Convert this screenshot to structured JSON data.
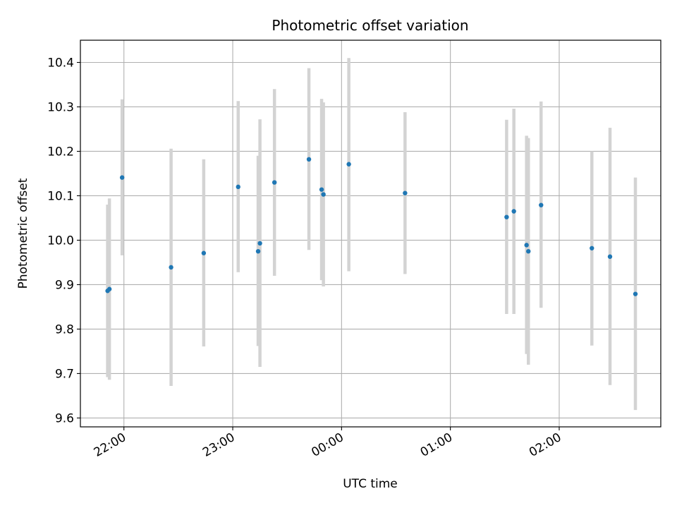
{
  "chart_data": {
    "type": "scatter",
    "title": "Photometric offset variation",
    "xlabel": "UTC time",
    "ylabel": "Photometric offset",
    "x_unit": "UTC time (hh:mm)",
    "xlim": [
      "21:36",
      "02:56"
    ],
    "ylim": [
      9.58,
      10.45
    ],
    "x_tick_labels": [
      "22:00",
      "23:00",
      "00:00",
      "01:00",
      "02:00"
    ],
    "y_tick_values": [
      9.6,
      9.7,
      9.8,
      9.9,
      10.0,
      10.1,
      10.2,
      10.3,
      10.4
    ],
    "y_tick_labels": [
      "9.6",
      "9.7",
      "9.8",
      "9.9",
      "10.0",
      "10.1",
      "10.2",
      "10.3",
      "10.4"
    ],
    "grid": true,
    "series": [
      {
        "marker_color": "#1f77b4",
        "errorbar_color": "#d3d3d3",
        "points": [
          {
            "x": "21:51",
            "y": 9.886,
            "ylow": 9.692,
            "yhigh": 10.08
          },
          {
            "x": "21:52",
            "y": 9.89,
            "ylow": 9.686,
            "yhigh": 10.094
          },
          {
            "x": "21:59",
            "y": 10.141,
            "ylow": 9.966,
            "yhigh": 10.317
          },
          {
            "x": "22:26",
            "y": 9.939,
            "ylow": 9.672,
            "yhigh": 10.206
          },
          {
            "x": "22:44",
            "y": 9.971,
            "ylow": 9.761,
            "yhigh": 10.182
          },
          {
            "x": "23:03",
            "y": 10.12,
            "ylow": 9.928,
            "yhigh": 10.313
          },
          {
            "x": "23:14",
            "y": 9.975,
            "ylow": 9.762,
            "yhigh": 10.19
          },
          {
            "x": "23:15",
            "y": 9.993,
            "ylow": 9.715,
            "yhigh": 10.272
          },
          {
            "x": "23:23",
            "y": 10.13,
            "ylow": 9.92,
            "yhigh": 10.34
          },
          {
            "x": "23:42",
            "y": 10.182,
            "ylow": 9.978,
            "yhigh": 10.387
          },
          {
            "x": "23:49",
            "y": 10.114,
            "ylow": 9.91,
            "yhigh": 10.318
          },
          {
            "x": "23:50",
            "y": 10.103,
            "ylow": 9.896,
            "yhigh": 10.31
          },
          {
            "x": "00:04",
            "y": 10.171,
            "ylow": 9.93,
            "yhigh": 10.41
          },
          {
            "x": "00:35",
            "y": 10.106,
            "ylow": 9.924,
            "yhigh": 10.288
          },
          {
            "x": "01:31",
            "y": 10.052,
            "ylow": 9.834,
            "yhigh": 10.271
          },
          {
            "x": "01:35",
            "y": 10.065,
            "ylow": 9.834,
            "yhigh": 10.296
          },
          {
            "x": "01:42",
            "y": 9.989,
            "ylow": 9.744,
            "yhigh": 10.235
          },
          {
            "x": "01:43",
            "y": 9.975,
            "ylow": 9.72,
            "yhigh": 10.23
          },
          {
            "x": "01:50",
            "y": 10.079,
            "ylow": 9.848,
            "yhigh": 10.312
          },
          {
            "x": "02:18",
            "y": 9.982,
            "ylow": 9.763,
            "yhigh": 10.2
          },
          {
            "x": "02:28",
            "y": 9.963,
            "ylow": 9.674,
            "yhigh": 10.253
          },
          {
            "x": "02:42",
            "y": 9.879,
            "ylow": 9.618,
            "yhigh": 10.141
          }
        ]
      }
    ]
  }
}
